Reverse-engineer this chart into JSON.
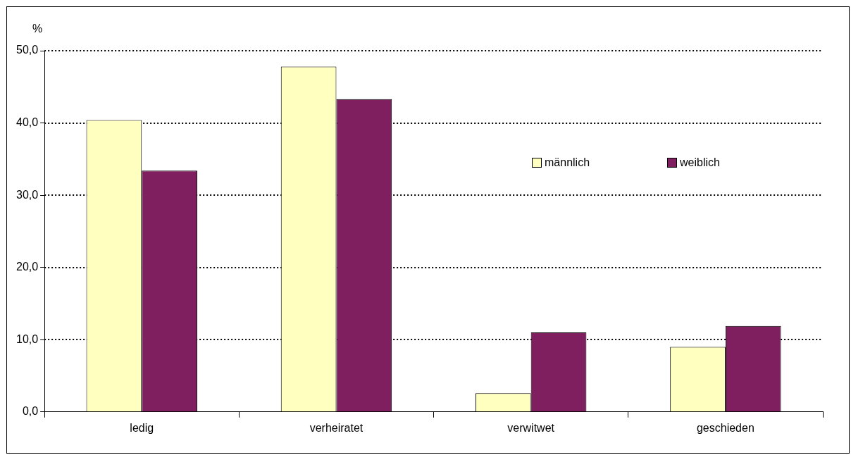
{
  "chart_data": {
    "type": "bar",
    "ylabel": "%",
    "categories": [
      "ledig",
      "verheiratet",
      "verwitwet",
      "geschieden"
    ],
    "series": [
      {
        "name": "männlich",
        "color": "#ffffc0",
        "values": [
          40.4,
          47.8,
          2.6,
          9.0
        ]
      },
      {
        "name": "weiblich",
        "color": "#7f1f5f",
        "values": [
          33.4,
          43.3,
          11.0,
          11.9
        ]
      }
    ],
    "ylim": [
      0,
      50
    ],
    "yticks": [
      {
        "value": 0,
        "label": "0,0"
      },
      {
        "value": 10,
        "label": "10,0"
      },
      {
        "value": 20,
        "label": "20,0"
      },
      {
        "value": 30,
        "label": "30,0"
      },
      {
        "value": 40,
        "label": "40,0"
      },
      {
        "value": 50,
        "label": "50,0"
      }
    ],
    "grid": "y",
    "legend": "top right"
  }
}
